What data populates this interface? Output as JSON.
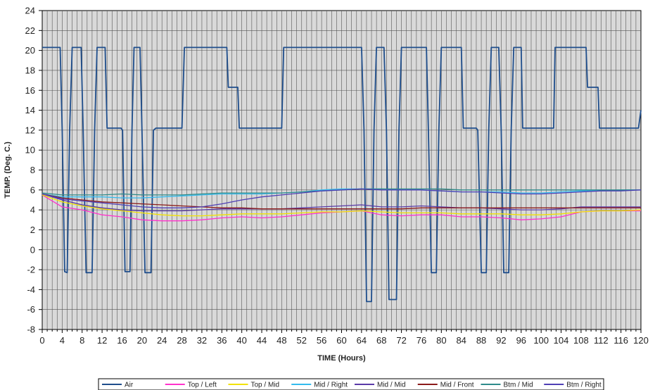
{
  "chart_data": {
    "type": "line",
    "title": "",
    "xlabel": "TIME (Hours)",
    "ylabel": "TEMP. (Deg. C.)",
    "xlim": [
      0,
      120
    ],
    "ylim": [
      -8,
      24
    ],
    "x_ticks": [
      0,
      4,
      8,
      12,
      16,
      20,
      24,
      28,
      32,
      36,
      40,
      44,
      48,
      52,
      56,
      60,
      64,
      68,
      72,
      76,
      80,
      84,
      88,
      92,
      96,
      100,
      104,
      108,
      112,
      116,
      120
    ],
    "y_ticks": [
      -8,
      -6,
      -4,
      -2,
      0,
      2,
      4,
      6,
      8,
      10,
      12,
      14,
      16,
      18,
      20,
      22,
      24
    ],
    "grid": true,
    "legend_position": "bottom",
    "series": [
      {
        "name": "Air",
        "color": "#1f4e8c",
        "points": [
          [
            0,
            20.3
          ],
          [
            3.6,
            20.3
          ],
          [
            4,
            12
          ],
          [
            4.5,
            -2.2
          ],
          [
            5,
            -2.3
          ],
          [
            5.5,
            12
          ],
          [
            6,
            20.3
          ],
          [
            7.8,
            20.3
          ],
          [
            8.2,
            12
          ],
          [
            8.8,
            -2.3
          ],
          [
            10,
            -2.3
          ],
          [
            10.5,
            12
          ],
          [
            11,
            20.3
          ],
          [
            12.6,
            20.3
          ],
          [
            13,
            12.2
          ],
          [
            15.8,
            12.2
          ],
          [
            16.1,
            12
          ],
          [
            16.6,
            -2.2
          ],
          [
            17.6,
            -2.2
          ],
          [
            18,
            12
          ],
          [
            18.4,
            20.3
          ],
          [
            19.6,
            20.3
          ],
          [
            20,
            12
          ],
          [
            20.6,
            -2.3
          ],
          [
            21.8,
            -2.3
          ],
          [
            22.3,
            12
          ],
          [
            22.8,
            12.2
          ],
          [
            28,
            12.2
          ],
          [
            28.5,
            20.3
          ],
          [
            32,
            20.3
          ],
          [
            33.5,
            20.3
          ],
          [
            37,
            20.3
          ],
          [
            37.3,
            16.3
          ],
          [
            39.2,
            16.3
          ],
          [
            39.5,
            12.2
          ],
          [
            48,
            12.2
          ],
          [
            48.4,
            20.3
          ],
          [
            64,
            20.3
          ],
          [
            64.5,
            12
          ],
          [
            65,
            -5.2
          ],
          [
            66,
            -5.2
          ],
          [
            66.5,
            12
          ],
          [
            67,
            20.3
          ],
          [
            68.5,
            20.3
          ],
          [
            69,
            12
          ],
          [
            69.5,
            -5
          ],
          [
            71,
            -5
          ],
          [
            71.5,
            12
          ],
          [
            72,
            20.3
          ],
          [
            77,
            20.3
          ],
          [
            77.4,
            12
          ],
          [
            78,
            -2.3
          ],
          [
            79,
            -2.3
          ],
          [
            79.5,
            12
          ],
          [
            80,
            20.3
          ],
          [
            84,
            20.3
          ],
          [
            84.4,
            12.2
          ],
          [
            87,
            12.2
          ],
          [
            87.3,
            12
          ],
          [
            88,
            -2.3
          ],
          [
            89,
            -2.3
          ],
          [
            89.5,
            12
          ],
          [
            90,
            20.3
          ],
          [
            91.5,
            20.3
          ],
          [
            92,
            12
          ],
          [
            92.5,
            -2.3
          ],
          [
            93.5,
            -2.3
          ],
          [
            94,
            12
          ],
          [
            94.5,
            20.3
          ],
          [
            96,
            20.3
          ],
          [
            96.3,
            12.2
          ],
          [
            102.5,
            12.2
          ],
          [
            102.8,
            20.3
          ],
          [
            109,
            20.3
          ],
          [
            109.3,
            16.3
          ],
          [
            111.4,
            16.3
          ],
          [
            111.7,
            12.2
          ],
          [
            119.5,
            12.2
          ],
          [
            120,
            14
          ]
        ]
      },
      {
        "name": "Top / Left",
        "color": "#ff33cc",
        "points": [
          [
            0,
            5.5
          ],
          [
            4,
            4.3
          ],
          [
            8,
            4
          ],
          [
            12,
            3.5
          ],
          [
            16,
            3.3
          ],
          [
            20,
            3
          ],
          [
            24,
            2.9
          ],
          [
            28,
            2.9
          ],
          [
            32,
            3
          ],
          [
            36,
            3.2
          ],
          [
            40,
            3.3
          ],
          [
            44,
            3.2
          ],
          [
            48,
            3.3
          ],
          [
            52,
            3.5
          ],
          [
            56,
            3.7
          ],
          [
            60,
            3.8
          ],
          [
            64,
            3.9
          ],
          [
            68,
            3.5
          ],
          [
            72,
            3.4
          ],
          [
            76,
            3.5
          ],
          [
            80,
            3.5
          ],
          [
            84,
            3.3
          ],
          [
            88,
            3.3
          ],
          [
            92,
            3.2
          ],
          [
            96,
            3
          ],
          [
            100,
            3.1
          ],
          [
            104,
            3.3
          ],
          [
            108,
            3.8
          ],
          [
            112,
            3.9
          ],
          [
            116,
            3.9
          ],
          [
            120,
            3.9
          ]
        ]
      },
      {
        "name": "Top / Mid",
        "color": "#f2e200",
        "points": [
          [
            0,
            5.5
          ],
          [
            4,
            4.8
          ],
          [
            8,
            4.4
          ],
          [
            12,
            4.1
          ],
          [
            16,
            3.9
          ],
          [
            20,
            3.7
          ],
          [
            24,
            3.5
          ],
          [
            28,
            3.4
          ],
          [
            32,
            3.4
          ],
          [
            36,
            3.5
          ],
          [
            40,
            3.6
          ],
          [
            44,
            3.6
          ],
          [
            48,
            3.6
          ],
          [
            52,
            3.7
          ],
          [
            56,
            3.8
          ],
          [
            60,
            3.8
          ],
          [
            64,
            3.9
          ],
          [
            68,
            3.8
          ],
          [
            72,
            3.7
          ],
          [
            76,
            3.7
          ],
          [
            80,
            3.7
          ],
          [
            84,
            3.6
          ],
          [
            88,
            3.6
          ],
          [
            92,
            3.6
          ],
          [
            96,
            3.5
          ],
          [
            100,
            3.5
          ],
          [
            104,
            3.6
          ],
          [
            108,
            3.8
          ],
          [
            112,
            3.9
          ],
          [
            116,
            3.9
          ],
          [
            120,
            4
          ]
        ]
      },
      {
        "name": "Mid / Right",
        "color": "#33bbee",
        "points": [
          [
            0,
            5.6
          ],
          [
            4,
            5.3
          ],
          [
            8,
            5.3
          ],
          [
            12,
            5.3
          ],
          [
            16,
            5.2
          ],
          [
            20,
            5.2
          ],
          [
            24,
            5.3
          ],
          [
            28,
            5.4
          ],
          [
            32,
            5.5
          ],
          [
            36,
            5.6
          ],
          [
            40,
            5.6
          ],
          [
            44,
            5.6
          ],
          [
            48,
            5.7
          ],
          [
            52,
            5.8
          ],
          [
            56,
            6
          ],
          [
            60,
            6.1
          ],
          [
            64,
            6.1
          ],
          [
            68,
            6.1
          ],
          [
            72,
            6
          ],
          [
            76,
            6
          ],
          [
            80,
            5.9
          ],
          [
            84,
            5.8
          ],
          [
            88,
            5.8
          ],
          [
            92,
            5.8
          ],
          [
            96,
            5.7
          ],
          [
            100,
            5.7
          ],
          [
            104,
            5.8
          ],
          [
            108,
            5.9
          ],
          [
            112,
            5.9
          ],
          [
            116,
            6
          ],
          [
            120,
            6
          ]
        ]
      },
      {
        "name": "Mid / Mid",
        "color": "#5a3aa8",
        "points": [
          [
            0,
            5.6
          ],
          [
            4,
            5
          ],
          [
            8,
            4.5
          ],
          [
            12,
            4.2
          ],
          [
            16,
            4
          ],
          [
            20,
            3.9
          ],
          [
            24,
            3.9
          ],
          [
            28,
            3.9
          ],
          [
            32,
            4
          ],
          [
            36,
            4.1
          ],
          [
            40,
            4.1
          ],
          [
            44,
            4.1
          ],
          [
            48,
            4.1
          ],
          [
            52,
            4.2
          ],
          [
            56,
            4.3
          ],
          [
            60,
            4.4
          ],
          [
            64,
            4.5
          ],
          [
            68,
            4.3
          ],
          [
            72,
            4.3
          ],
          [
            76,
            4.4
          ],
          [
            80,
            4.3
          ],
          [
            84,
            4.2
          ],
          [
            88,
            4.2
          ],
          [
            92,
            4.1
          ],
          [
            96,
            4
          ],
          [
            100,
            4
          ],
          [
            104,
            4.1
          ],
          [
            108,
            4.3
          ],
          [
            112,
            4.3
          ],
          [
            116,
            4.3
          ],
          [
            120,
            4.3
          ]
        ]
      },
      {
        "name": "Mid / Front",
        "color": "#8b1a1a",
        "points": [
          [
            0,
            5.6
          ],
          [
            4,
            5.2
          ],
          [
            8,
            5
          ],
          [
            12,
            4.8
          ],
          [
            16,
            4.7
          ],
          [
            20,
            4.6
          ],
          [
            24,
            4.5
          ],
          [
            28,
            4.4
          ],
          [
            32,
            4.3
          ],
          [
            36,
            4.2
          ],
          [
            40,
            4.2
          ],
          [
            44,
            4.1
          ],
          [
            48,
            4.1
          ],
          [
            52,
            4.1
          ],
          [
            56,
            4.1
          ],
          [
            60,
            4.1
          ],
          [
            64,
            4.1
          ],
          [
            68,
            4.1
          ],
          [
            72,
            4.1
          ],
          [
            76,
            4.2
          ],
          [
            80,
            4.2
          ],
          [
            84,
            4.2
          ],
          [
            88,
            4.2
          ],
          [
            92,
            4.2
          ],
          [
            96,
            4.2
          ],
          [
            100,
            4.2
          ],
          [
            104,
            4.2
          ],
          [
            108,
            4.2
          ],
          [
            112,
            4.2
          ],
          [
            116,
            4.2
          ],
          [
            120,
            4.2
          ]
        ]
      },
      {
        "name": "Btm / Mid",
        "color": "#2e8b8b",
        "points": [
          [
            0,
            5.7
          ],
          [
            4,
            5.5
          ],
          [
            8,
            5.5
          ],
          [
            12,
            5.5
          ],
          [
            16,
            5.6
          ],
          [
            20,
            5.5
          ],
          [
            24,
            5.5
          ],
          [
            28,
            5.5
          ],
          [
            32,
            5.6
          ],
          [
            36,
            5.7
          ],
          [
            40,
            5.7
          ],
          [
            44,
            5.7
          ],
          [
            48,
            5.7
          ],
          [
            52,
            5.8
          ],
          [
            56,
            5.9
          ],
          [
            60,
            6
          ],
          [
            64,
            6.1
          ],
          [
            68,
            6.1
          ],
          [
            72,
            6.1
          ],
          [
            76,
            6.1
          ],
          [
            80,
            6.1
          ],
          [
            84,
            6
          ],
          [
            88,
            6
          ],
          [
            92,
            6
          ],
          [
            96,
            6
          ],
          [
            100,
            6
          ],
          [
            104,
            6
          ],
          [
            108,
            6
          ],
          [
            112,
            6
          ],
          [
            116,
            6
          ],
          [
            120,
            6
          ]
        ]
      },
      {
        "name": "Btm / Right",
        "color": "#4f3fb5",
        "points": [
          [
            0,
            5.6
          ],
          [
            4,
            5.1
          ],
          [
            8,
            4.9
          ],
          [
            12,
            4.7
          ],
          [
            16,
            4.5
          ],
          [
            20,
            4.3
          ],
          [
            24,
            4.2
          ],
          [
            28,
            4.2
          ],
          [
            32,
            4.3
          ],
          [
            36,
            4.6
          ],
          [
            40,
            5
          ],
          [
            44,
            5.3
          ],
          [
            48,
            5.5
          ],
          [
            52,
            5.7
          ],
          [
            56,
            5.9
          ],
          [
            60,
            6
          ],
          [
            64,
            6.1
          ],
          [
            68,
            6
          ],
          [
            72,
            6
          ],
          [
            76,
            6
          ],
          [
            80,
            5.9
          ],
          [
            84,
            5.8
          ],
          [
            88,
            5.8
          ],
          [
            92,
            5.7
          ],
          [
            96,
            5.6
          ],
          [
            100,
            5.6
          ],
          [
            104,
            5.7
          ],
          [
            108,
            5.8
          ],
          [
            112,
            5.9
          ],
          [
            116,
            5.9
          ],
          [
            120,
            6
          ]
        ]
      }
    ]
  }
}
